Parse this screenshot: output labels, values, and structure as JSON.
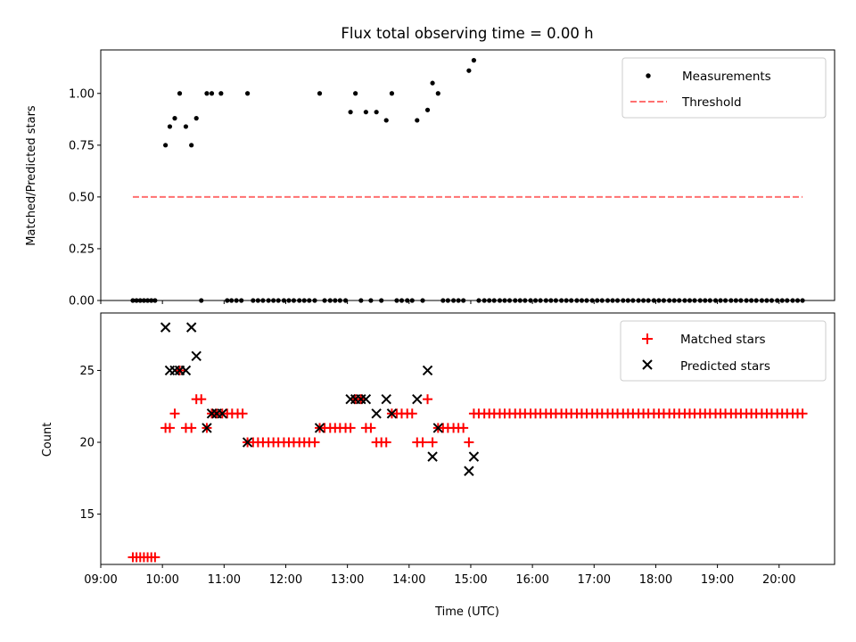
{
  "chart_data": [
    {
      "type": "scatter",
      "title": "Flux total observing time = 0.00 h",
      "xlabel": "",
      "ylabel": "Matched/Predicted stars",
      "xlim": [
        9.0,
        20.9
      ],
      "ylim": [
        0.0,
        1.21
      ],
      "yticks": [
        0.0,
        0.25,
        0.5,
        0.75,
        1.0
      ],
      "ytick_labels": [
        "0.00",
        "0.25",
        "0.50",
        "0.75",
        "1.00"
      ],
      "legend_position": "top-right",
      "series": [
        {
          "name": "Measurements",
          "marker": "dot",
          "color": "#000000",
          "x": [
            9.52,
            9.58,
            9.64,
            9.7,
            9.76,
            9.82,
            9.88,
            10.05,
            10.12,
            10.2,
            10.28,
            10.38,
            10.47,
            10.55,
            10.63,
            10.72,
            10.8,
            10.95,
            11.05,
            11.12,
            11.2,
            11.28,
            11.38,
            11.47,
            11.55,
            11.63,
            11.72,
            11.8,
            11.88,
            11.97,
            12.05,
            12.13,
            12.22,
            12.3,
            12.38,
            12.47,
            12.55,
            12.63,
            12.72,
            12.8,
            12.88,
            12.97,
            13.05,
            13.13,
            13.22,
            13.3,
            13.38,
            13.47,
            13.55,
            13.63,
            13.72,
            13.8,
            13.88,
            13.97,
            14.05,
            14.13,
            14.22,
            14.3,
            14.38,
            14.47,
            14.55,
            14.63,
            14.72,
            14.8,
            14.88,
            14.97,
            15.05,
            15.13,
            15.22,
            15.3,
            15.38,
            15.47,
            15.55,
            15.63,
            15.72,
            15.8,
            15.88,
            15.97,
            16.05,
            16.13,
            16.22,
            16.3,
            16.38,
            16.47,
            16.55,
            16.63,
            16.72,
            16.8,
            16.88,
            16.97,
            17.05,
            17.13,
            17.22,
            17.3,
            17.38,
            17.47,
            17.55,
            17.63,
            17.72,
            17.8,
            17.88,
            17.97,
            18.05,
            18.13,
            18.22,
            18.3,
            18.38,
            18.47,
            18.55,
            18.63,
            18.72,
            18.8,
            18.88,
            18.97,
            19.05,
            19.13,
            19.22,
            19.3,
            19.38,
            19.47,
            19.55,
            19.63,
            19.72,
            19.8,
            19.88,
            19.97,
            20.05,
            20.13,
            20.22,
            20.3,
            20.38
          ],
          "y": [
            0.0,
            0.0,
            0.0,
            0.0,
            0.0,
            0.0,
            0.0,
            0.75,
            0.84,
            0.88,
            1.0,
            0.84,
            0.75,
            0.88,
            0.0,
            1.0,
            1.0,
            1.0,
            0.0,
            0.0,
            0.0,
            0.0,
            1.0,
            0.0,
            0.0,
            0.0,
            0.0,
            0.0,
            0.0,
            0.0,
            0.0,
            0.0,
            0.0,
            0.0,
            0.0,
            0.0,
            1.0,
            0.0,
            0.0,
            0.0,
            0.0,
            0.0,
            0.91,
            1.0,
            0.0,
            0.91,
            0.0,
            0.91,
            0.0,
            0.87,
            1.0,
            0.0,
            0.0,
            0.0,
            0.0,
            0.87,
            0.0,
            0.92,
            1.05,
            1.0,
            0.0,
            0.0,
            0.0,
            0.0,
            0.0,
            1.11,
            1.16,
            0.0,
            0.0,
            0.0,
            0.0,
            0.0,
            0.0,
            0.0,
            0.0,
            0.0,
            0.0,
            0.0,
            0.0,
            0.0,
            0.0,
            0.0,
            0.0,
            0.0,
            0.0,
            0.0,
            0.0,
            0.0,
            0.0,
            0.0,
            0.0,
            0.0,
            0.0,
            0.0,
            0.0,
            0.0,
            0.0,
            0.0,
            0.0,
            0.0,
            0.0,
            0.0,
            0.0,
            0.0,
            0.0,
            0.0,
            0.0,
            0.0,
            0.0,
            0.0,
            0.0,
            0.0,
            0.0,
            0.0,
            0.0,
            0.0,
            0.0,
            0.0,
            0.0,
            0.0,
            0.0,
            0.0,
            0.0,
            0.0,
            0.0,
            0.0,
            0.0,
            0.0,
            0.0,
            0.0,
            0.0
          ]
        },
        {
          "name": "Threshold",
          "marker": "dashed-line",
          "color": "#ff7070",
          "x": [
            9.52,
            20.38
          ],
          "y": [
            0.5,
            0.5
          ]
        }
      ]
    },
    {
      "type": "scatter",
      "title": "",
      "xlabel": "Time (UTC)",
      "ylabel": "Count",
      "xlim": [
        9.0,
        20.9
      ],
      "ylim": [
        11.5,
        29.0
      ],
      "yticks": [
        15,
        20,
        25
      ],
      "ytick_labels": [
        "15",
        "20",
        "25"
      ],
      "xticks": [
        9,
        10,
        11,
        12,
        13,
        14,
        15,
        16,
        17,
        18,
        19,
        20
      ],
      "xtick_labels": [
        "09:00",
        "10:00",
        "11:00",
        "12:00",
        "13:00",
        "14:00",
        "15:00",
        "16:00",
        "17:00",
        "18:00",
        "19:00",
        "20:00"
      ],
      "legend_position": "top-right",
      "series": [
        {
          "name": "Matched stars",
          "marker": "plus",
          "color": "#ff0000",
          "x": [
            9.52,
            9.58,
            9.64,
            9.7,
            9.76,
            9.82,
            9.88,
            10.05,
            10.12,
            10.2,
            10.28,
            10.38,
            10.47,
            10.55,
            10.63,
            10.72,
            10.8,
            10.88,
            10.97,
            11.05,
            11.13,
            11.22,
            11.3,
            11.38,
            11.47,
            11.55,
            11.63,
            11.72,
            11.8,
            11.88,
            11.97,
            12.05,
            12.13,
            12.22,
            12.3,
            12.38,
            12.47,
            12.55,
            12.63,
            12.72,
            12.8,
            12.88,
            12.97,
            13.05,
            13.13,
            13.22,
            13.3,
            13.38,
            13.47,
            13.55,
            13.63,
            13.72,
            13.8,
            13.88,
            13.97,
            14.05,
            14.13,
            14.22,
            14.3,
            14.38,
            14.47,
            14.55,
            14.63,
            14.72,
            14.8,
            14.88,
            14.97,
            15.05,
            15.13,
            15.22,
            15.3,
            15.38,
            15.47,
            15.55,
            15.63,
            15.72,
            15.8,
            15.88,
            15.97,
            16.05,
            16.13,
            16.22,
            16.3,
            16.38,
            16.47,
            16.55,
            16.63,
            16.72,
            16.8,
            16.88,
            16.97,
            17.05,
            17.13,
            17.22,
            17.3,
            17.38,
            17.47,
            17.55,
            17.63,
            17.72,
            17.8,
            17.88,
            17.97,
            18.05,
            18.13,
            18.22,
            18.3,
            18.38,
            18.47,
            18.55,
            18.63,
            18.72,
            18.8,
            18.88,
            18.97,
            19.05,
            19.13,
            19.22,
            19.3,
            19.38,
            19.47,
            19.55,
            19.63,
            19.72,
            19.8,
            19.88,
            19.97,
            20.05,
            20.13,
            20.22,
            20.3,
            20.38
          ],
          "y": [
            12,
            12,
            12,
            12,
            12,
            12,
            12,
            21,
            21,
            22,
            25,
            21,
            21,
            23,
            23,
            21,
            22,
            22,
            22,
            22,
            22,
            22,
            22,
            20,
            20,
            20,
            20,
            20,
            20,
            20,
            20,
            20,
            20,
            20,
            20,
            20,
            20,
            21,
            21,
            21,
            21,
            21,
            21,
            21,
            23,
            23,
            21,
            21,
            20,
            20,
            20,
            22,
            22,
            22,
            22,
            22,
            20,
            20,
            23,
            20,
            21,
            21,
            21,
            21,
            21,
            21,
            20,
            22,
            22,
            22,
            22,
            22,
            22,
            22,
            22,
            22,
            22,
            22,
            22,
            22,
            22,
            22,
            22,
            22,
            22,
            22,
            22,
            22,
            22,
            22,
            22,
            22,
            22,
            22,
            22,
            22,
            22,
            22,
            22,
            22,
            22,
            22,
            22,
            22,
            22,
            22,
            22,
            22,
            22,
            22,
            22,
            22,
            22,
            22,
            22,
            22,
            22,
            22,
            22,
            22,
            22,
            22,
            22,
            22,
            22,
            22,
            22,
            22,
            22,
            22,
            22,
            22
          ]
        },
        {
          "name": "Predicted stars",
          "marker": "x",
          "color": "#000000",
          "x": [
            10.05,
            10.12,
            10.2,
            10.28,
            10.38,
            10.47,
            10.55,
            10.72,
            10.8,
            10.88,
            10.97,
            11.38,
            12.55,
            13.05,
            13.13,
            13.22,
            13.3,
            13.47,
            13.63,
            13.72,
            14.13,
            14.3,
            14.38,
            14.47,
            14.97,
            15.05
          ],
          "y": [
            28,
            25,
            25,
            25,
            25,
            28,
            26,
            21,
            22,
            22,
            22,
            20,
            21,
            23,
            23,
            23,
            23,
            22,
            23,
            22,
            23,
            25,
            19,
            21,
            18,
            19
          ]
        }
      ]
    }
  ]
}
